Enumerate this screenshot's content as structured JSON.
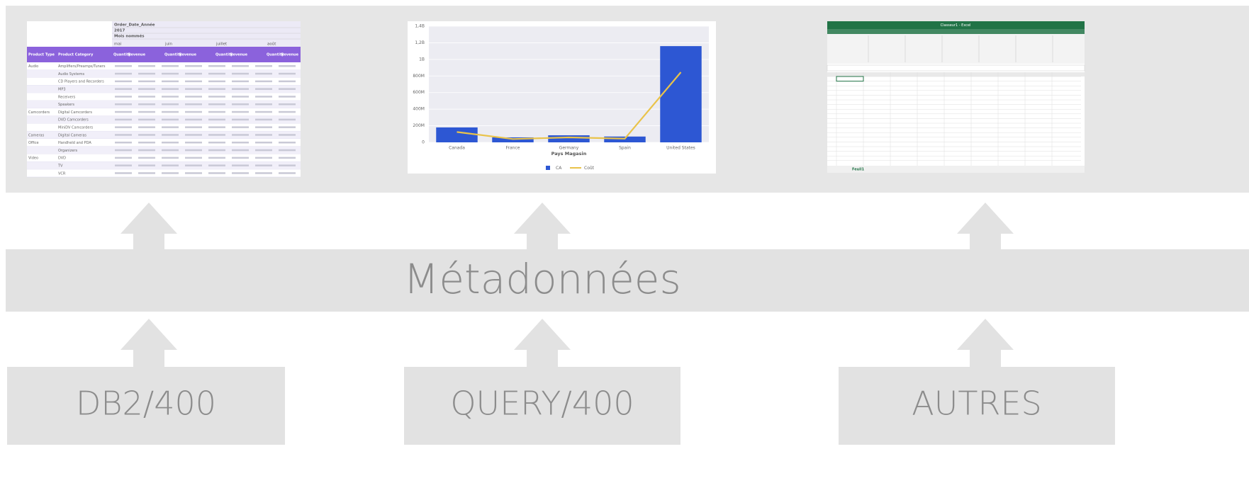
{
  "thumbnails": {
    "table": {
      "header_rows": [
        "Order_Date_Année",
        "2017",
        "Mois nommés"
      ],
      "months": [
        "mai",
        "juin",
        "juillet",
        "août"
      ],
      "column_headers": [
        "Product Type",
        "Product Category",
        "Quantity",
        "Revenue",
        "Quantity",
        "Revenue",
        "Quantity",
        "Revenue",
        "Quantity",
        "Revenue"
      ],
      "rows": [
        [
          "Audio",
          "Amplifiers/Preamps/Tuners"
        ],
        [
          null,
          "Audio Systems"
        ],
        [
          null,
          "CD Players and Recorders"
        ],
        [
          null,
          "MP3"
        ],
        [
          null,
          "Receivers"
        ],
        [
          null,
          "Speakers"
        ],
        [
          "Camcorders",
          "Digital Camcorders"
        ],
        [
          null,
          "DVD Camcorders"
        ],
        [
          null,
          "MiniDV Camcorders"
        ],
        [
          "Cameras",
          "Digital Cameras"
        ],
        [
          "Office",
          "Handheld and PDA"
        ],
        [
          null,
          "Organizers"
        ],
        [
          "Video",
          "DVD"
        ],
        [
          null,
          "TV"
        ],
        [
          null,
          "VCR"
        ]
      ]
    },
    "chart": {
      "type": "bar",
      "x_label": "Pays Magasin",
      "categories": [
        "Canada",
        "France",
        "Germany",
        "Spain",
        "United States"
      ],
      "series": [
        {
          "name": "CA",
          "color": "#2d57d3",
          "type": "bar",
          "values": [
            180000000,
            60000000,
            85000000,
            70000000,
            1160000000
          ]
        },
        {
          "name": "Coût",
          "color": "#e9c34a",
          "type": "line",
          "values": [
            125000000,
            40000000,
            60000000,
            45000000,
            845000000
          ]
        }
      ],
      "ylim": [
        0,
        1400000000
      ],
      "yticks": [
        {
          "value": 0,
          "label": "0"
        },
        {
          "value": 200000000,
          "label": "200M"
        },
        {
          "value": 400000000,
          "label": "400M"
        },
        {
          "value": 600000000,
          "label": "600M"
        },
        {
          "value": 800000000,
          "label": "800M"
        },
        {
          "value": 1000000000,
          "label": "1B"
        },
        {
          "value": 1200000000,
          "label": "1,2B"
        },
        {
          "value": 1400000000,
          "label": "1,4B"
        }
      ],
      "grid": true
    },
    "excel": {
      "title": "Classeur1 - Excel",
      "sheet_tab": "Feuil1"
    }
  },
  "layer": {
    "label": "Métadonnées"
  },
  "sources": [
    "DB2/400",
    "QUERY/400",
    "AUTRES"
  ]
}
